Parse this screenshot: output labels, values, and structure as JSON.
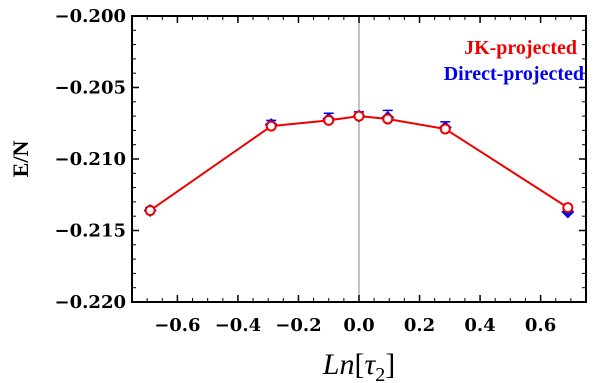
{
  "chart_data": {
    "type": "scatter",
    "title": "",
    "xlabel": "Ln[τ₂]",
    "ylabel": "E/N",
    "xlim": [
      -0.75,
      0.75
    ],
    "ylim": [
      -0.22,
      -0.2
    ],
    "x_ticks": [
      -0.6,
      -0.4,
      -0.2,
      0.0,
      0.2,
      0.4,
      0.6
    ],
    "x_tick_labels": [
      "−0.6",
      "−0.4",
      "−0.2",
      "0.0",
      "0.2",
      "0.4",
      "0.6"
    ],
    "y_ticks": [
      -0.22,
      -0.215,
      -0.21,
      -0.205,
      -0.2
    ],
    "y_tick_labels": [
      "−0.220",
      "−0.215",
      "−0.210",
      "−0.205",
      "−0.200"
    ],
    "legend_position": "top-right",
    "series": [
      {
        "name": "Direct-projected",
        "color": "#0000ee",
        "marker": "diamond",
        "x": [
          -0.69,
          -0.29,
          -0.1,
          0.0,
          0.095,
          0.285,
          0.69
        ],
        "y": [
          -0.2136,
          -0.2076,
          -0.2072,
          -0.207,
          -0.2071,
          -0.2078,
          -0.2137
        ],
        "error": [
          0.0002,
          0.0003,
          0.0004,
          0.0003,
          0.0005,
          0.0004,
          0.0002
        ]
      },
      {
        "name": "JK-projected",
        "color": "#ee0000",
        "marker": "open-circle",
        "line": true,
        "x": [
          -0.69,
          -0.29,
          -0.1,
          0.0,
          0.095,
          0.285,
          0.69
        ],
        "y": [
          -0.2136,
          -0.2077,
          -0.2073,
          -0.207,
          -0.2072,
          -0.2079,
          -0.2134
        ],
        "error": [
          0.0,
          0.0,
          0.0,
          0.0,
          0.0,
          0.0,
          0.0
        ]
      }
    ],
    "legend": [
      "JK-projected",
      "Direct-projected"
    ]
  }
}
